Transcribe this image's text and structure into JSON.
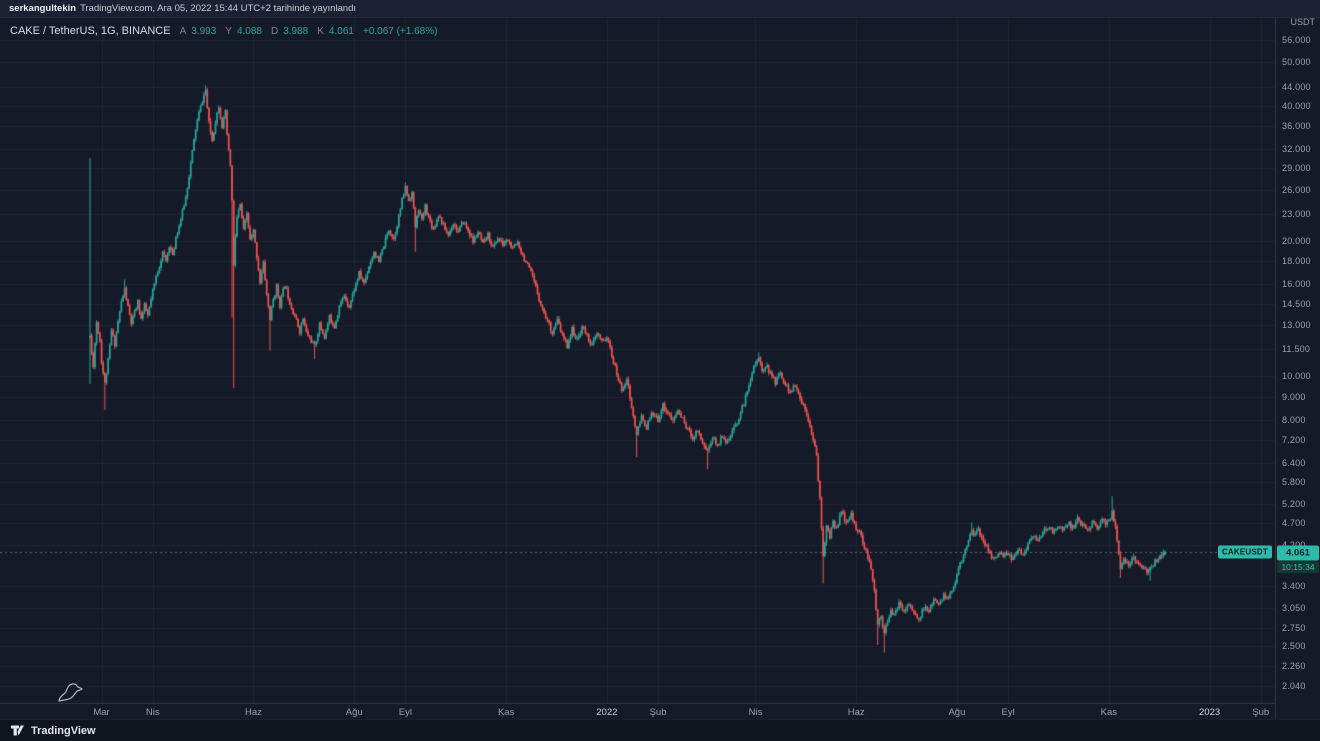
{
  "topbar": {
    "username": "serkangultekin",
    "publish_text": "TradingView.com, Ara 05, 2022 15:44 UTC+2 tarihinde yayınlandı"
  },
  "legend": {
    "symbol_title": "CAKE / TetherUS, 1G, BINANCE",
    "open_label": "A",
    "open": "3.993",
    "high_label": "Y",
    "high": "4.088",
    "low_label": "D",
    "low": "3.988",
    "close_label": "K",
    "close": "4.061",
    "change": "+0.067 (+1.68%)"
  },
  "price_axis": {
    "currency": "USDT",
    "ticks": [
      {
        "label": "56.000",
        "value": 56
      },
      {
        "label": "50.000",
        "value": 50
      },
      {
        "label": "44.000",
        "value": 44
      },
      {
        "label": "40.000",
        "value": 40
      },
      {
        "label": "36.000",
        "value": 36
      },
      {
        "label": "32.000",
        "value": 32
      },
      {
        "label": "29.000",
        "value": 29
      },
      {
        "label": "26.000",
        "value": 26
      },
      {
        "label": "23.000",
        "value": 23
      },
      {
        "label": "20.000",
        "value": 20
      },
      {
        "label": "18.000",
        "value": 18
      },
      {
        "label": "16.000",
        "value": 16
      },
      {
        "label": "14.500",
        "value": 14.5
      },
      {
        "label": "13.000",
        "value": 13
      },
      {
        "label": "11.500",
        "value": 11.5
      },
      {
        "label": "10.000",
        "value": 10
      },
      {
        "label": "9.000",
        "value": 9
      },
      {
        "label": "8.000",
        "value": 8
      },
      {
        "label": "7.200",
        "value": 7.2
      },
      {
        "label": "6.400",
        "value": 6.4
      },
      {
        "label": "5.800",
        "value": 5.8
      },
      {
        "label": "5.200",
        "value": 5.2
      },
      {
        "label": "4.700",
        "value": 4.7
      },
      {
        "label": "4.200",
        "value": 4.2
      },
      {
        "label": "3.400",
        "value": 3.4
      },
      {
        "label": "3.050",
        "value": 3.05
      },
      {
        "label": "2.750",
        "value": 2.75
      },
      {
        "label": "2.500",
        "value": 2.5
      },
      {
        "label": "2.260",
        "value": 2.26
      },
      {
        "label": "2.040",
        "value": 2.04
      }
    ],
    "last_price_label": {
      "symbol": "CAKEUSDT",
      "price": "4.061",
      "value": 4.061,
      "countdown": "10:15:34"
    }
  },
  "time_axis": {
    "labels": [
      {
        "label": "Mar",
        "day": 7,
        "year": false
      },
      {
        "label": "Nis",
        "day": 38,
        "year": false
      },
      {
        "label": "Haz",
        "day": 99,
        "year": false
      },
      {
        "label": "Ağu",
        "day": 160,
        "year": false
      },
      {
        "label": "Eyl",
        "day": 191,
        "year": false
      },
      {
        "label": "Kas",
        "day": 252,
        "year": false
      },
      {
        "label": "2022",
        "day": 313,
        "year": true
      },
      {
        "label": "Şub",
        "day": 344,
        "year": false
      },
      {
        "label": "Nis",
        "day": 403,
        "year": false
      },
      {
        "label": "Haz",
        "day": 464,
        "year": false
      },
      {
        "label": "Ağu",
        "day": 525,
        "year": false
      },
      {
        "label": "Eyl",
        "day": 556,
        "year": false
      },
      {
        "label": "Kas",
        "day": 617,
        "year": false
      },
      {
        "label": "2023",
        "day": 678,
        "year": true
      },
      {
        "label": "Şub",
        "day": 709,
        "year": false
      }
    ]
  },
  "footer": {
    "brand": "TradingView"
  },
  "colors": {
    "background": "#151a28",
    "topbar_bg": "#1b2132",
    "footer_bg": "#10141f",
    "up": "#26a69a",
    "down": "#ef5350",
    "grid": "rgba(255,255,255,0.045)",
    "axis_text": "#9aa0ab",
    "last_price_line": "rgba(150,158,168,0.55)",
    "badge_bg": "#2cbbaa"
  },
  "chart_data": {
    "type": "candlestick",
    "symbol": "CAKE/USDT",
    "exchange": "BINANCE",
    "interval": "1G",
    "price_scale": "logarithmic",
    "ylim": [
      2.04,
      56.0
    ],
    "date_origin": "2021-02-22",
    "x_unit": "days_since_origin",
    "visible_day_range": [
      0,
      651
    ],
    "last_candle": {
      "open": 3.993,
      "high": 4.088,
      "low": 3.988,
      "close": 4.061,
      "change": 0.067,
      "change_pct": 1.68
    },
    "anchor_format": [
      "day_index",
      "close_price"
    ],
    "close_anchors": [
      [
        0,
        12.3
      ],
      [
        1,
        11.2
      ],
      [
        2,
        10.6
      ],
      [
        4,
        13.2
      ],
      [
        6,
        12.0
      ],
      [
        7,
        10.8
      ],
      [
        9,
        9.6
      ],
      [
        11,
        10.8
      ],
      [
        13,
        12.6
      ],
      [
        15,
        11.8
      ],
      [
        17,
        13.2
      ],
      [
        19,
        14.6
      ],
      [
        21,
        15.6
      ],
      [
        23,
        14.2
      ],
      [
        25,
        13.1
      ],
      [
        27,
        13.8
      ],
      [
        29,
        14.6
      ],
      [
        31,
        13.4
      ],
      [
        33,
        14.3
      ],
      [
        35,
        13.6
      ],
      [
        38,
        15.4
      ],
      [
        40,
        16.6
      ],
      [
        42,
        17.6
      ],
      [
        44,
        18.8
      ],
      [
        46,
        18.0
      ],
      [
        48,
        19.6
      ],
      [
        50,
        18.4
      ],
      [
        52,
        20.4
      ],
      [
        54,
        21.6
      ],
      [
        56,
        23.2
      ],
      [
        58,
        25.0
      ],
      [
        60,
        28.0
      ],
      [
        62,
        31.5
      ],
      [
        64,
        35.5
      ],
      [
        66,
        38.5
      ],
      [
        68,
        41.0
      ],
      [
        70,
        43.3
      ],
      [
        71,
        39.5
      ],
      [
        72,
        36.5
      ],
      [
        74,
        33.5
      ],
      [
        76,
        37.0
      ],
      [
        78,
        40.0
      ],
      [
        80,
        36.0
      ],
      [
        82,
        38.5
      ],
      [
        83,
        34.5
      ],
      [
        84,
        31.5
      ],
      [
        85,
        29.5
      ],
      [
        86,
        24.5
      ],
      [
        87,
        17.5
      ],
      [
        88,
        20.5
      ],
      [
        89,
        22.5
      ],
      [
        91,
        24.0
      ],
      [
        93,
        21.0
      ],
      [
        95,
        23.0
      ],
      [
        97,
        20.0
      ],
      [
        99,
        21.0
      ],
      [
        101,
        18.5
      ],
      [
        103,
        16.2
      ],
      [
        105,
        17.8
      ],
      [
        107,
        15.2
      ],
      [
        109,
        13.4
      ],
      [
        111,
        14.8
      ],
      [
        113,
        15.8
      ],
      [
        115,
        14.4
      ],
      [
        118,
        16.0
      ],
      [
        121,
        14.6
      ],
      [
        124,
        13.6
      ],
      [
        127,
        12.6
      ],
      [
        129,
        13.4
      ],
      [
        131,
        12.5
      ],
      [
        134,
        12.0
      ],
      [
        136,
        11.6
      ],
      [
        139,
        13.0
      ],
      [
        142,
        12.2
      ],
      [
        145,
        13.5
      ],
      [
        148,
        12.9
      ],
      [
        151,
        14.3
      ],
      [
        154,
        15.1
      ],
      [
        157,
        14.3
      ],
      [
        160,
        15.6
      ],
      [
        163,
        16.9
      ],
      [
        166,
        16.1
      ],
      [
        169,
        17.6
      ],
      [
        172,
        18.9
      ],
      [
        175,
        17.9
      ],
      [
        178,
        19.6
      ],
      [
        181,
        21.2
      ],
      [
        184,
        20.2
      ],
      [
        187,
        22.6
      ],
      [
        189,
        24.6
      ],
      [
        191,
        26.3
      ],
      [
        193,
        24.6
      ],
      [
        195,
        25.6
      ],
      [
        197,
        21.5
      ],
      [
        199,
        23.6
      ],
      [
        201,
        22.1
      ],
      [
        203,
        23.9
      ],
      [
        205,
        22.6
      ],
      [
        208,
        21.2
      ],
      [
        211,
        22.9
      ],
      [
        214,
        21.6
      ],
      [
        217,
        20.6
      ],
      [
        220,
        21.9
      ],
      [
        223,
        20.9
      ],
      [
        226,
        22.1
      ],
      [
        229,
        21.1
      ],
      [
        232,
        19.9
      ],
      [
        235,
        20.9
      ],
      [
        238,
        19.6
      ],
      [
        241,
        20.6
      ],
      [
        244,
        19.3
      ],
      [
        247,
        20.3
      ],
      [
        250,
        19.6
      ],
      [
        253,
        20.1
      ],
      [
        256,
        19.1
      ],
      [
        259,
        19.9
      ],
      [
        262,
        18.6
      ],
      [
        265,
        17.6
      ],
      [
        268,
        16.6
      ],
      [
        271,
        15.3
      ],
      [
        274,
        14.1
      ],
      [
        277,
        13.3
      ],
      [
        280,
        12.5
      ],
      [
        283,
        13.3
      ],
      [
        286,
        12.3
      ],
      [
        289,
        11.7
      ],
      [
        292,
        12.7
      ],
      [
        295,
        12.0
      ],
      [
        298,
        12.9
      ],
      [
        301,
        12.3
      ],
      [
        304,
        11.7
      ],
      [
        307,
        12.4
      ],
      [
        310,
        11.9
      ],
      [
        313,
        12.2
      ],
      [
        316,
        11.1
      ],
      [
        319,
        10.1
      ],
      [
        322,
        9.3
      ],
      [
        325,
        9.9
      ],
      [
        328,
        8.5
      ],
      [
        331,
        7.4
      ],
      [
        334,
        8.1
      ],
      [
        337,
        7.7
      ],
      [
        340,
        8.2
      ],
      [
        344,
        8.0
      ],
      [
        347,
        8.6
      ],
      [
        350,
        8.3
      ],
      [
        353,
        7.9
      ],
      [
        356,
        8.4
      ],
      [
        359,
        8.0
      ],
      [
        362,
        7.6
      ],
      [
        365,
        7.3
      ],
      [
        368,
        7.6
      ],
      [
        371,
        7.1
      ],
      [
        374,
        6.8
      ],
      [
        377,
        7.3
      ],
      [
        380,
        7.0
      ],
      [
        383,
        7.4
      ],
      [
        386,
        7.1
      ],
      [
        389,
        7.5
      ],
      [
        392,
        7.9
      ],
      [
        395,
        8.5
      ],
      [
        398,
        9.2
      ],
      [
        400,
        9.9
      ],
      [
        402,
        10.6
      ],
      [
        405,
        10.9
      ],
      [
        407,
        10.3
      ],
      [
        409,
        10.6
      ],
      [
        412,
        10.1
      ],
      [
        415,
        9.7
      ],
      [
        418,
        10.2
      ],
      [
        421,
        9.6
      ],
      [
        424,
        9.2
      ],
      [
        427,
        9.5
      ],
      [
        430,
        8.9
      ],
      [
        432,
        8.6
      ],
      [
        434,
        8.3
      ],
      [
        436,
        7.8
      ],
      [
        438,
        7.2
      ],
      [
        440,
        6.6
      ],
      [
        442,
        5.3
      ],
      [
        444,
        4.0
      ],
      [
        446,
        4.6
      ],
      [
        448,
        4.35
      ],
      [
        450,
        4.8
      ],
      [
        452,
        4.55
      ],
      [
        455,
        5.0
      ],
      [
        458,
        4.7
      ],
      [
        461,
        4.9
      ],
      [
        464,
        4.6
      ],
      [
        467,
        4.4
      ],
      [
        470,
        4.05
      ],
      [
        473,
        3.7
      ],
      [
        475,
        3.3
      ],
      [
        477,
        2.8
      ],
      [
        479,
        2.95
      ],
      [
        481,
        2.65
      ],
      [
        483,
        2.85
      ],
      [
        485,
        3.02
      ],
      [
        487,
        2.92
      ],
      [
        490,
        3.1
      ],
      [
        493,
        3.0
      ],
      [
        496,
        3.12
      ],
      [
        499,
        2.95
      ],
      [
        502,
        2.85
      ],
      [
        505,
        3.05
      ],
      [
        508,
        3.0
      ],
      [
        511,
        3.15
      ],
      [
        514,
        3.08
      ],
      [
        517,
        3.25
      ],
      [
        520,
        3.2
      ],
      [
        523,
        3.42
      ],
      [
        525,
        3.6
      ],
      [
        528,
        3.9
      ],
      [
        531,
        4.2
      ],
      [
        534,
        4.55
      ],
      [
        536,
        4.4
      ],
      [
        538,
        4.55
      ],
      [
        541,
        4.3
      ],
      [
        544,
        4.1
      ],
      [
        547,
        3.9
      ],
      [
        550,
        4.05
      ],
      [
        553,
        3.95
      ],
      [
        556,
        4.0
      ],
      [
        559,
        3.92
      ],
      [
        562,
        4.12
      ],
      [
        565,
        4.02
      ],
      [
        568,
        4.22
      ],
      [
        571,
        4.38
      ],
      [
        574,
        4.28
      ],
      [
        577,
        4.48
      ],
      [
        580,
        4.58
      ],
      [
        583,
        4.5
      ],
      [
        586,
        4.65
      ],
      [
        589,
        4.55
      ],
      [
        592,
        4.7
      ],
      [
        595,
        4.6
      ],
      [
        598,
        4.78
      ],
      [
        601,
        4.66
      ],
      [
        604,
        4.56
      ],
      [
        607,
        4.7
      ],
      [
        610,
        4.62
      ],
      [
        613,
        4.76
      ],
      [
        616,
        4.7
      ],
      [
        618,
        4.85
      ],
      [
        619,
        5.0
      ],
      [
        620,
        4.8
      ],
      [
        621,
        4.6
      ],
      [
        622,
        4.25
      ],
      [
        624,
        3.75
      ],
      [
        626,
        3.9
      ],
      [
        629,
        3.78
      ],
      [
        632,
        3.92
      ],
      [
        635,
        3.82
      ],
      [
        638,
        3.72
      ],
      [
        641,
        3.66
      ],
      [
        644,
        3.82
      ],
      [
        647,
        3.95
      ],
      [
        649,
        3.99
      ],
      [
        651,
        4.061
      ]
    ],
    "wick_overrides": {
      "0": {
        "high": 30.6,
        "low": 9.6
      },
      "9": {
        "low": 8.4
      },
      "21": {
        "high": 16.4
      },
      "70": {
        "high": 44.4
      },
      "86": {
        "low": 13.5
      },
      "87": {
        "low": 9.4
      },
      "109": {
        "low": 11.4
      },
      "136": {
        "low": 10.9
      },
      "191": {
        "high": 27.0
      },
      "197": {
        "low": 18.9
      },
      "331": {
        "low": 6.6
      },
      "374": {
        "low": 6.2
      },
      "405": {
        "high": 11.3
      },
      "444": {
        "low": 3.45
      },
      "477": {
        "low": 2.52
      },
      "481": {
        "low": 2.42
      },
      "534": {
        "high": 4.72
      },
      "598": {
        "high": 4.92
      },
      "619": {
        "high": 5.4
      },
      "624": {
        "low": 3.55
      },
      "642": {
        "low": 3.5
      }
    }
  }
}
